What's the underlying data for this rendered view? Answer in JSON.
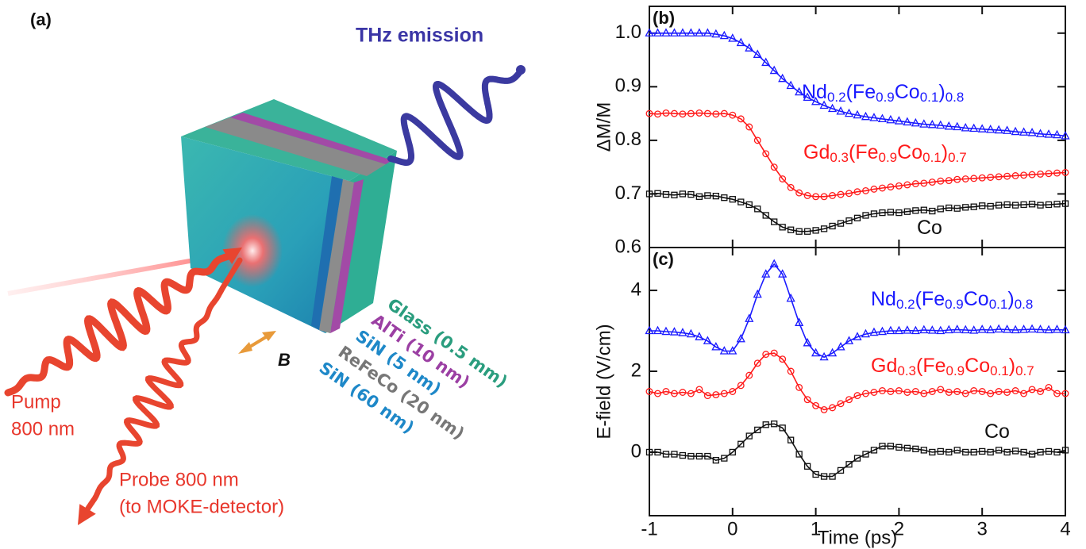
{
  "diagram": {
    "panel_label": "(a)",
    "thz_label": "THz emission",
    "pump_label": [
      "Pump",
      "800 nm"
    ],
    "probe_label": [
      "Probe 800 nm",
      "(to MOKE-detector)"
    ],
    "field_label": "B",
    "layers": [
      "Glass (0.5 mm)",
      "AlTi (10 nm)",
      "SiN (5 nm)",
      "ReFeCo (20 nm)",
      "SiN (60 nm)"
    ]
  },
  "chart_data": [
    {
      "type": "line",
      "panel_label": "(b)",
      "ylabel": "ΔM/M",
      "x": [
        -1,
        -0.9,
        -0.8,
        -0.7,
        -0.6,
        -0.5,
        -0.4,
        -0.3,
        -0.2,
        -0.1,
        0,
        0.1,
        0.2,
        0.3,
        0.4,
        0.5,
        0.6,
        0.7,
        0.8,
        0.9,
        1,
        1.1,
        1.2,
        1.3,
        1.4,
        1.5,
        1.6,
        1.7,
        1.8,
        1.9,
        2,
        2.1,
        2.2,
        2.3,
        2.4,
        2.5,
        2.6,
        2.7,
        2.8,
        2.9,
        3,
        3.1,
        3.2,
        3.3,
        3.4,
        3.5,
        3.6,
        3.7,
        3.8,
        3.9,
        4
      ],
      "xlim": [
        -1,
        4
      ],
      "xticks": [
        -1,
        0,
        1,
        2,
        3,
        4
      ],
      "ylim": [
        0.6,
        1.05
      ],
      "yticks": [
        {
          "value": 1,
          "label": "1.0"
        },
        0.9,
        0.8,
        0.7,
        0.6
      ],
      "series": [
        {
          "name": "Nd0.2(Fe0.9Co0.1)0.8",
          "color": "#1a1aff",
          "marker": "triangle",
          "values": [
            1,
            1,
            1,
            1,
            1,
            1,
            1,
            1,
            0.998,
            0.995,
            0.99,
            0.982,
            0.972,
            0.96,
            0.945,
            0.93,
            0.915,
            0.902,
            0.89,
            0.88,
            0.872,
            0.865,
            0.859,
            0.854,
            0.85,
            0.847,
            0.844,
            0.842,
            0.84,
            0.838,
            0.836,
            0.834,
            0.832,
            0.83,
            0.829,
            0.828,
            0.826,
            0.825,
            0.823,
            0.822,
            0.821,
            0.82,
            0.819,
            0.818,
            0.816,
            0.815,
            0.814,
            0.812,
            0.811,
            0.81,
            0.808
          ]
        },
        {
          "name": "Gd0.3(Fe0.9Co0.1)0.7",
          "color": "#ff1a1a",
          "marker": "circle",
          "values": [
            0.85,
            0.849,
            0.851,
            0.85,
            0.849,
            0.85,
            0.851,
            0.85,
            0.849,
            0.85,
            0.847,
            0.84,
            0.825,
            0.8,
            0.775,
            0.75,
            0.728,
            0.712,
            0.702,
            0.697,
            0.695,
            0.695,
            0.697,
            0.699,
            0.701,
            0.704,
            0.706,
            0.709,
            0.711,
            0.713,
            0.715,
            0.717,
            0.719,
            0.72,
            0.722,
            0.724,
            0.725,
            0.727,
            0.728,
            0.729,
            0.73,
            0.731,
            0.732,
            0.733,
            0.734,
            0.735,
            0.736,
            0.737,
            0.738,
            0.739,
            0.74
          ]
        },
        {
          "name": "Co",
          "color": "#111111",
          "marker": "square",
          "values": [
            0.7,
            0.701,
            0.699,
            0.698,
            0.7,
            0.699,
            0.695,
            0.697,
            0.696,
            0.693,
            0.69,
            0.685,
            0.68,
            0.672,
            0.66,
            0.648,
            0.638,
            0.633,
            0.63,
            0.63,
            0.632,
            0.635,
            0.64,
            0.645,
            0.65,
            0.655,
            0.66,
            0.663,
            0.665,
            0.666,
            0.665,
            0.667,
            0.669,
            0.67,
            0.668,
            0.672,
            0.674,
            0.673,
            0.675,
            0.676,
            0.678,
            0.677,
            0.679,
            0.68,
            0.679,
            0.68,
            0.681,
            0.679,
            0.68,
            0.681,
            0.682
          ]
        }
      ]
    },
    {
      "type": "line",
      "panel_label": "(c)",
      "ylabel": "E-field (V/cm)",
      "xlabel": "Time (ps)",
      "x": [
        -1,
        -0.9,
        -0.8,
        -0.7,
        -0.6,
        -0.5,
        -0.4,
        -0.3,
        -0.2,
        -0.1,
        0,
        0.1,
        0.2,
        0.3,
        0.4,
        0.5,
        0.6,
        0.7,
        0.8,
        0.9,
        1,
        1.1,
        1.2,
        1.3,
        1.4,
        1.5,
        1.6,
        1.7,
        1.8,
        1.9,
        2,
        2.1,
        2.2,
        2.3,
        2.4,
        2.5,
        2.6,
        2.7,
        2.8,
        2.9,
        3,
        3.1,
        3.2,
        3.3,
        3.4,
        3.5,
        3.6,
        3.7,
        3.8,
        3.9,
        4
      ],
      "xlim": [
        -1,
        4
      ],
      "xticks": [
        -1,
        0,
        1,
        2,
        3,
        4
      ],
      "ylim": [
        -1.57,
        5.06
      ],
      "yticks": [
        0,
        2,
        4
      ],
      "series": [
        {
          "name": "Nd0.2(Fe0.9Co0.1)0.8",
          "color": "#1a1aff",
          "marker": "triangle",
          "values": [
            3,
            3,
            2.98,
            2.97,
            2.95,
            2.92,
            2.85,
            2.75,
            2.6,
            2.5,
            2.5,
            2.8,
            3.3,
            3.9,
            4.4,
            4.65,
            4.4,
            3.8,
            3.2,
            2.7,
            2.45,
            2.35,
            2.45,
            2.6,
            2.75,
            2.85,
            2.92,
            2.96,
            2.98,
            3,
            3,
            3.01,
            3,
            3.02,
            3.01,
            3,
            3.02,
            3.03,
            3.02,
            3.01,
            3.03,
            3.02,
            3.04,
            3.03,
            3.02,
            3.03,
            3.04,
            3.03,
            3.02,
            3.03,
            3.02
          ]
        },
        {
          "name": "Gd0.3(Fe0.9Co0.1)0.7",
          "color": "#ff1a1a",
          "marker": "circle",
          "values": [
            1.5,
            1.45,
            1.5,
            1.45,
            1.48,
            1.45,
            1.55,
            1.4,
            1.42,
            1.45,
            1.5,
            1.65,
            1.9,
            2.2,
            2.42,
            2.45,
            2.3,
            2,
            1.6,
            1.3,
            1.15,
            1.05,
            1.1,
            1.2,
            1.3,
            1.4,
            1.45,
            1.48,
            1.52,
            1.5,
            1.52,
            1.48,
            1.5,
            1.45,
            1.5,
            1.55,
            1.48,
            1.5,
            1.45,
            1.52,
            1.5,
            1.45,
            1.5,
            1.48,
            1.52,
            1.45,
            1.55,
            1.5,
            1.6,
            1.45,
            1.45
          ]
        },
        {
          "name": "Co",
          "color": "#111111",
          "marker": "square",
          "values": [
            0,
            0,
            -0.05,
            -0.05,
            -0.08,
            -0.1,
            -0.1,
            -0.1,
            -0.2,
            -0.15,
            0,
            0.2,
            0.4,
            0.55,
            0.68,
            0.7,
            0.6,
            0.3,
            -0.05,
            -0.35,
            -0.55,
            -0.6,
            -0.6,
            -0.45,
            -0.3,
            -0.15,
            -0.05,
            0.05,
            0.15,
            0.15,
            0.12,
            0.1,
            0.08,
            0.05,
            0,
            0.02,
            0,
            0.05,
            0,
            0,
            0.02,
            0,
            0.05,
            0,
            0.03,
            0,
            -0.05,
            0,
            0.02,
            0,
            0.05
          ]
        }
      ]
    }
  ]
}
